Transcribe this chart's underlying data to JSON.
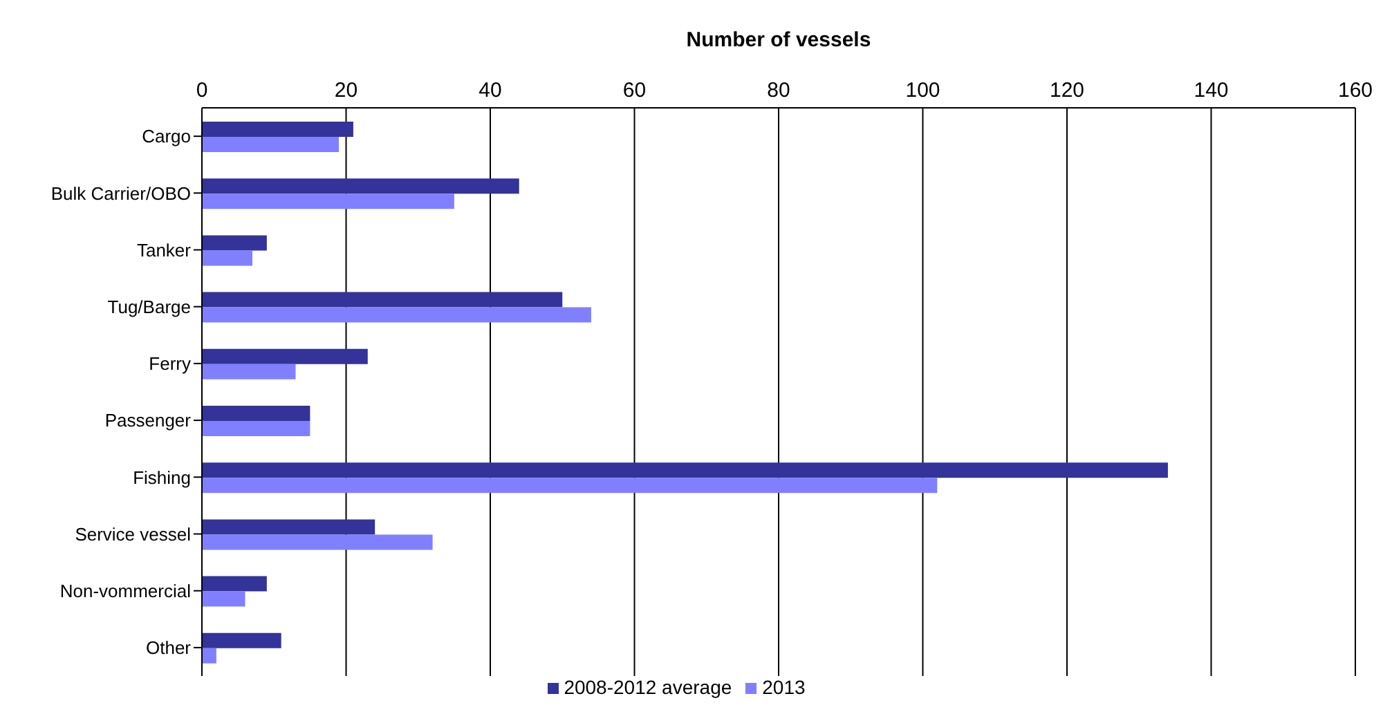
{
  "chart_data": {
    "type": "bar",
    "orientation": "horizontal",
    "xlabel": "Number of vessels",
    "categories": [
      "Cargo",
      "Bulk Carrier/OBO",
      "Tanker",
      "Tug/Barge",
      "Ferry",
      "Passenger",
      "Fishing",
      "Service vessel",
      "Non-vommercial",
      "Other"
    ],
    "series": [
      {
        "name": "2008-2012 average",
        "color": "#333399",
        "values": [
          21,
          44,
          9,
          50,
          23,
          15,
          134,
          24,
          9,
          11
        ]
      },
      {
        "name": "2013",
        "color": "#8080ff",
        "values": [
          19,
          35,
          7,
          54,
          13,
          15,
          102,
          32,
          6,
          2
        ]
      }
    ],
    "xlim": [
      0,
      160
    ],
    "xticks": [
      0,
      20,
      40,
      60,
      80,
      100,
      120,
      140,
      160
    ],
    "grid": "x",
    "legend": "bottom"
  }
}
